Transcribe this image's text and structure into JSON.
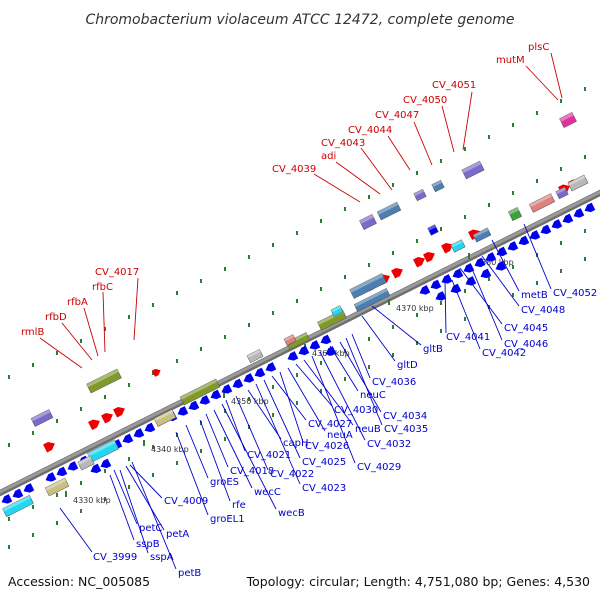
{
  "title": "Chromobacterium violaceum ATCC 12472, complete genome",
  "accession": "Accession: NC_005085",
  "topology": "Topology: circular; Length: 4,751,080 bp; Genes: 4,530",
  "colors": {
    "forward_label": "#cc0000",
    "reverse_label": "#0000cc",
    "backbone": "#9a9a9a",
    "tick": "#2e7d32",
    "arrow_blue": "#0000ee",
    "arrow_red": "#ee0000",
    "olive": "#7f9a2a",
    "steel": "#4a7fb0",
    "purple": "#7a6acc",
    "cyan": "#22d8f0",
    "tan": "#c8c080",
    "gray": "#b8b8b8",
    "salmon": "#e08080",
    "magenta": "#e030a0",
    "green": "#3ca03c"
  },
  "scale_labels": [
    "4330 kbp",
    "4340 kbp",
    "4350 kbp",
    "4360 kbp",
    "4370 kbp",
    "4380 kbp"
  ],
  "forward_labels": [
    "rmlB",
    "rfbD",
    "rfbA",
    "rfbC",
    "CV_4017",
    "CV_4039",
    "adi",
    "CV_4043",
    "CV_4044",
    "CV_4047",
    "CV_4050",
    "CV_4051",
    "mutM",
    "plsC"
  ],
  "reverse_labels": [
    "CV_3999",
    "sspB",
    "petC",
    "sspA",
    "petA",
    "petB",
    "CV_4009",
    "groEL1",
    "groES",
    "rfe",
    "CV_4018",
    "wecC",
    "wecB",
    "CV_4021",
    "CV_4022",
    "capH",
    "CV_4023",
    "CV_4025",
    "CV_4027",
    "CV_4026",
    "neuA",
    "CV_4030",
    "neuB",
    "CV_4029",
    "CV_4032",
    "neuC",
    "CV_4034",
    "CV_4035",
    "CV_4036",
    "gltD",
    "gltB",
    "CV_4041",
    "CV_4042",
    "CV_4045",
    "CV_4046",
    "CV_4048",
    "metB",
    "CV_4052"
  ]
}
